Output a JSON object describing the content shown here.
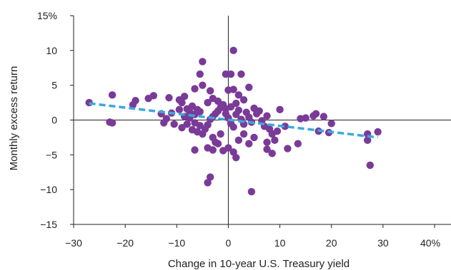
{
  "chart_data": {
    "type": "scatter",
    "title": "",
    "xlabel": "Change in 10-year U.S. Treasury yield",
    "ylabel": "Monthly excess return",
    "xlim": [
      -30,
      43
    ],
    "ylim": [
      -15,
      15
    ],
    "x_ticks": [
      -30,
      -20,
      -10,
      0,
      10,
      20,
      30,
      40
    ],
    "x_tick_labels": [
      "−30",
      "−20",
      "−10",
      "0",
      "10",
      "20",
      "30",
      "40%"
    ],
    "y_ticks": [
      15,
      10,
      5,
      0,
      -5,
      -10,
      -15
    ],
    "y_tick_labels": [
      "15%",
      "10",
      "5",
      "0",
      "−5",
      "−10",
      "−15"
    ],
    "grid": false,
    "colors": {
      "points": "#7a3a98",
      "trendline": "#3aa8de",
      "axes": "#222222"
    },
    "series": [
      {
        "points": [
          [
            -27,
            2.5
          ],
          [
            -22.5,
            3.6
          ],
          [
            -23,
            -0.3
          ],
          [
            -22.5,
            -0.4
          ],
          [
            -18.5,
            2.2
          ],
          [
            -18,
            2.8
          ],
          [
            -15.5,
            3.1
          ],
          [
            -14.5,
            3.5
          ],
          [
            -13,
            0.9
          ],
          [
            -12,
            0.2
          ],
          [
            -11.5,
            3.2
          ],
          [
            -11,
            1.0
          ],
          [
            -10.5,
            -0.6
          ],
          [
            -12.5,
            -0.4
          ],
          [
            -9.5,
            2.9
          ],
          [
            -9,
            2.5
          ],
          [
            -8.5,
            3.4
          ],
          [
            -8,
            1.6
          ],
          [
            -7.5,
            1.2
          ],
          [
            -7,
            2.0
          ],
          [
            -6.5,
            0.8
          ],
          [
            -6,
            1.5
          ],
          [
            -5.5,
            1.2
          ],
          [
            -9.5,
            1.5
          ],
          [
            -8.5,
            0.5
          ],
          [
            -7.5,
            0.3
          ],
          [
            -6.5,
            -0.4
          ],
          [
            -8,
            -0.6
          ],
          [
            -5.5,
            -0.8
          ],
          [
            -9,
            -1.1
          ],
          [
            -7,
            -1.4
          ],
          [
            -6,
            -1.7
          ],
          [
            -5,
            -2.0
          ],
          [
            -4.5,
            -1.3
          ],
          [
            -4,
            -0.7
          ],
          [
            -3.5,
            0.1
          ],
          [
            -3,
            0.5
          ],
          [
            -2.5,
            0.9
          ],
          [
            -2,
            1.3
          ],
          [
            -1.5,
            1.8
          ],
          [
            -1,
            2.2
          ],
          [
            -0.5,
            1.6
          ],
          [
            -4,
            2.5
          ],
          [
            -3,
            3.1
          ],
          [
            -2,
            2.7
          ],
          [
            -6.5,
            4.5
          ],
          [
            -5,
            5.0
          ],
          [
            -5.5,
            6.6
          ],
          [
            -5,
            8.4
          ],
          [
            -3.5,
            4.2
          ],
          [
            -3,
            -2.5
          ],
          [
            -2.5,
            -3.2
          ],
          [
            -4,
            -4.0
          ],
          [
            -3,
            -4.3
          ],
          [
            -2,
            -3.4
          ],
          [
            -1,
            -4.4
          ],
          [
            -6.5,
            -4.3
          ],
          [
            -3.5,
            -8.2
          ],
          [
            -4,
            -9.0
          ],
          [
            1,
            10.0
          ],
          [
            -0.5,
            6.6
          ],
          [
            0.5,
            6.6
          ],
          [
            2.5,
            6.6
          ],
          [
            0,
            4.3
          ],
          [
            1,
            4.4
          ],
          [
            4,
            4.7
          ],
          [
            2,
            3.6
          ],
          [
            3,
            2.9
          ],
          [
            1.5,
            2.4
          ],
          [
            0.5,
            1.9
          ],
          [
            -0.5,
            0.9
          ],
          [
            0,
            0.3
          ],
          [
            0.5,
            -0.5
          ],
          [
            1,
            -1.0
          ],
          [
            1.5,
            0.8
          ],
          [
            2,
            1.4
          ],
          [
            2.5,
            0.1
          ],
          [
            3,
            -0.6
          ],
          [
            3.5,
            1.1
          ],
          [
            4,
            0.4
          ],
          [
            4.5,
            -0.3
          ],
          [
            5,
            1.7
          ],
          [
            5.5,
            0.9
          ],
          [
            6,
            1.3
          ],
          [
            6.5,
            -0.1
          ],
          [
            7,
            -0.9
          ],
          [
            7.5,
            0.6
          ],
          [
            8,
            -1.3
          ],
          [
            8.5,
            -2.0
          ],
          [
            9,
            -2.9
          ],
          [
            9.5,
            -1.6
          ],
          [
            7.5,
            -3.2
          ],
          [
            8.5,
            -4.8
          ],
          [
            7.5,
            -4.2
          ],
          [
            5,
            -2.5
          ],
          [
            4,
            -3.4
          ],
          [
            3,
            -2.0
          ],
          [
            2,
            -2.9
          ],
          [
            1.5,
            -5.4
          ],
          [
            1,
            -4.6
          ],
          [
            0,
            -4.0
          ],
          [
            -1.5,
            -2.0
          ],
          [
            4.5,
            -10.3
          ],
          [
            10,
            1.5
          ],
          [
            11,
            -0.9
          ],
          [
            11.5,
            -4.1
          ],
          [
            13.5,
            -3.4
          ],
          [
            14,
            0.2
          ],
          [
            15,
            0.3
          ],
          [
            16.5,
            0.6
          ],
          [
            17,
            0.9
          ],
          [
            18.5,
            0.5
          ],
          [
            17.5,
            -1.6
          ],
          [
            19.5,
            -1.8
          ],
          [
            20,
            -0.5
          ],
          [
            27,
            -2.0
          ],
          [
            27,
            -2.9
          ],
          [
            29,
            -1.7
          ],
          [
            27.5,
            -6.5
          ]
        ]
      }
    ],
    "trendline": {
      "style": "dashed",
      "x": [
        -27,
        29
      ],
      "y": [
        2.4,
        -2.5
      ]
    }
  }
}
